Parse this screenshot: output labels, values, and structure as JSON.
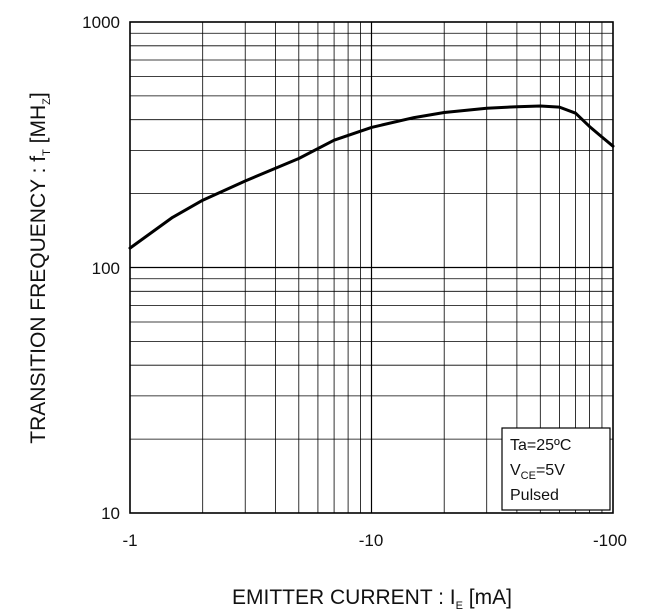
{
  "chart_data": {
    "type": "line",
    "title": "",
    "xlabel": {
      "main": "EMITTER CURRENT : I",
      "sub": "E",
      "unit": " [mA]"
    },
    "ylabel": {
      "main": "TRANSITION FREQUENCY : f",
      "sub": "T",
      "unit_open": " [MH",
      "unit_sub": "Z",
      "unit_close": "]"
    },
    "x_scale": "log",
    "y_scale": "log",
    "xlim": [
      -1,
      -100
    ],
    "ylim": [
      10,
      1000
    ],
    "x_tick_labels": {
      "t1": "-1",
      "t10": "-10",
      "t100": "-100"
    },
    "y_tick_labels": {
      "t10": "10",
      "t100": "100",
      "t1000": "1000"
    },
    "grid": true,
    "series": [
      {
        "x": [
          -1,
          -1.5,
          -2,
          -3,
          -5,
          -7,
          -10,
          -15,
          -20,
          -30,
          -40,
          -50,
          -60,
          -70,
          -80,
          -90,
          -100
        ],
        "y": [
          120,
          160,
          188,
          225,
          278,
          330,
          372,
          408,
          428,
          445,
          452,
          455,
          450,
          425,
          375,
          340,
          312
        ]
      }
    ],
    "annotation": {
      "line1": "Ta=25ºC",
      "line2_main": "V",
      "line2_sub": "CE",
      "line2_rest": "=5V",
      "line3": "Pulsed",
      "placement": "bottom-right"
    }
  }
}
